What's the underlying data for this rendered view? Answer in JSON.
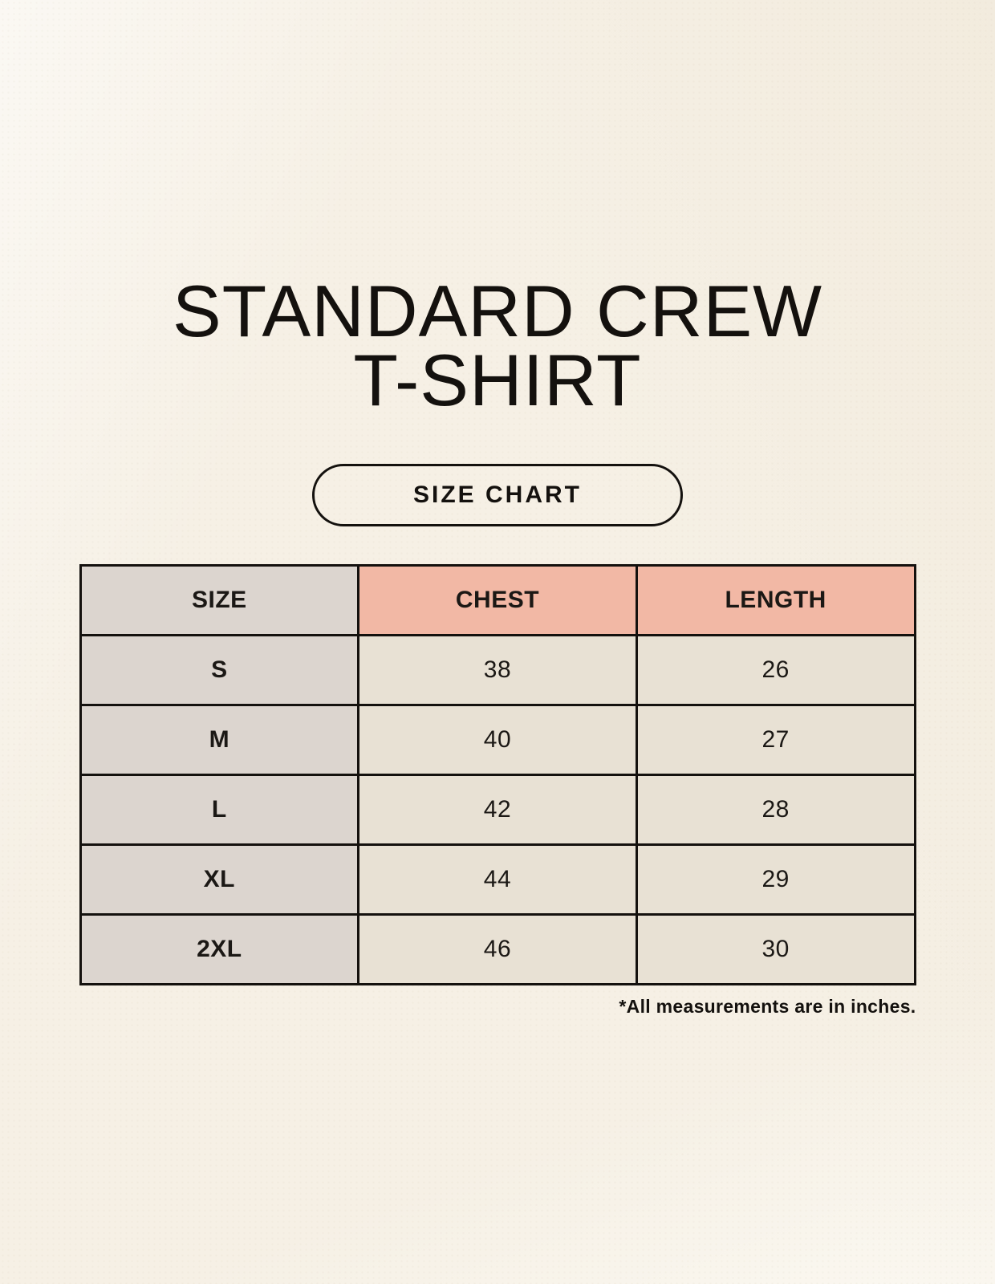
{
  "page": {
    "background_color": "#f9f5ed",
    "text_color": "#14110e"
  },
  "title": {
    "line1": "STANDARD CREW",
    "line2": "T-SHIRT"
  },
  "size_chart_button": {
    "label": "SIZE CHART"
  },
  "table": {
    "columns": [
      {
        "label": "SIZE",
        "header_bg": "#dcd5cf"
      },
      {
        "label": "CHEST",
        "header_bg": "#f2b8a5"
      },
      {
        "label": "LENGTH",
        "header_bg": "#f2b8a5"
      }
    ],
    "rows": [
      {
        "size": "S",
        "chest": "38",
        "length": "26"
      },
      {
        "size": "M",
        "chest": "40",
        "length": "27"
      },
      {
        "size": "L",
        "chest": "42",
        "length": "28"
      },
      {
        "size": "XL",
        "chest": "44",
        "length": "29"
      },
      {
        "size": "2XL",
        "chest": "46",
        "length": "30"
      }
    ],
    "size_column_bg": "#dcd5cf",
    "data_cell_bg": "#e8e1d4",
    "border_color": "#14110e"
  },
  "footnote": "*All measurements are in inches."
}
